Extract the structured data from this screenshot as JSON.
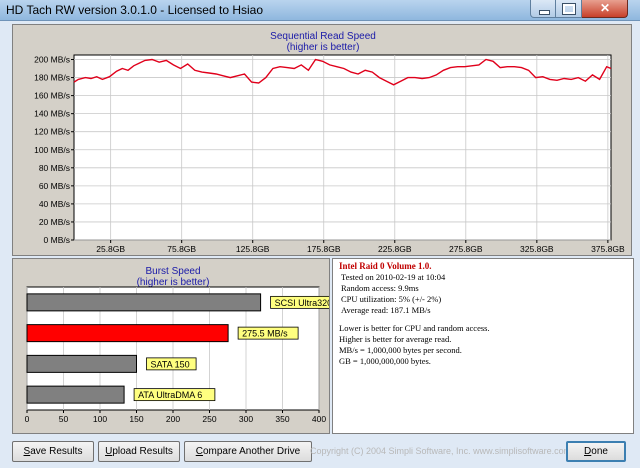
{
  "window": {
    "title": "HD Tach RW version 3.0.1.0 - Licensed to Hsiao"
  },
  "seq_chart": {
    "title_line1": "Sequential Read Speed",
    "title_line2": "(higher is better)"
  },
  "burst_chart": {
    "title_line1": "Burst Speed",
    "title_line2": "(higher is better)"
  },
  "info": {
    "heading": "Intel Raid 0 Volume 1.0.",
    "lines": [
      "Tested on 2010-02-19 at 10:04",
      "Random access: 9.9ms",
      "CPU utilization: 5% (+/- 2%)",
      "Average read: 187.1 MB/s"
    ],
    "notes": [
      "Lower is better for CPU and random access.",
      "Higher is better for average read.",
      "MB/s = 1,000,000 bytes per second.",
      "GB = 1,000,000,000 bytes."
    ]
  },
  "buttons": {
    "save_u": "S",
    "save_rest": "ave Results",
    "upload_u": "U",
    "upload_rest": "pload Results",
    "compare_u": "C",
    "compare_rest": "ompare Another Drive",
    "done_u": "D",
    "done_rest": "one"
  },
  "footer": {
    "copyright": "Copyright (C) 2004 Simpli Software, Inc. www.simplisoftware.com"
  },
  "colors": {
    "read_line": "#e0001b",
    "bar_gray": "#808080",
    "bar_red": "#ff0000",
    "label_bg": "#ffff80"
  },
  "chart_data": [
    {
      "type": "line",
      "title": "Sequential Read Speed",
      "subtitle": "(higher is better)",
      "x_tick_labels": [
        "25.8GB",
        "75.8GB",
        "125.8GB",
        "175.8GB",
        "225.8GB",
        "275.8GB",
        "325.8GB",
        "375.8GB"
      ],
      "x_ticks": [
        25.8,
        75.8,
        125.8,
        175.8,
        225.8,
        275.8,
        325.8,
        375.8
      ],
      "y_tick_labels": [
        "0 MB/s",
        "20 MB/s",
        "40 MB/s",
        "60 MB/s",
        "80 MB/s",
        "100 MB/s",
        "120 MB/s",
        "140 MB/s",
        "160 MB/s",
        "180 MB/s",
        "200 MB/s"
      ],
      "xlim": [
        0,
        378
      ],
      "ylim": [
        0,
        205
      ],
      "grid": true,
      "series": [
        {
          "x": [
            0,
            3,
            8,
            12,
            16,
            20,
            25,
            30,
            34,
            38,
            42,
            46,
            50,
            55,
            60,
            65,
            70,
            75,
            80,
            85,
            90,
            95,
            100,
            105,
            110,
            115,
            120,
            125,
            130,
            135,
            140,
            145,
            150,
            155,
            160,
            165,
            170,
            175,
            180,
            185,
            190,
            195,
            200,
            205,
            210,
            215,
            220,
            225,
            230,
            235,
            240,
            245,
            250,
            255,
            260,
            265,
            270,
            275,
            280,
            285,
            290,
            295,
            300,
            305,
            310,
            315,
            320,
            325,
            330,
            335,
            340,
            345,
            350,
            355,
            360,
            365,
            370,
            375,
            378
          ],
          "y": [
            175,
            178,
            180,
            179,
            181,
            178,
            181,
            187,
            190,
            188,
            193,
            196,
            199,
            200,
            197,
            199,
            194,
            190,
            195,
            188,
            186,
            185,
            184,
            182,
            180,
            182,
            184,
            175,
            174,
            180,
            190,
            192,
            191,
            190,
            194,
            188,
            200,
            198,
            194,
            192,
            190,
            186,
            184,
            188,
            186,
            180,
            176,
            172,
            176,
            180,
            180,
            179,
            180,
            183,
            188,
            191,
            192,
            192,
            193,
            194,
            200,
            198,
            191,
            192,
            192,
            191,
            188,
            180,
            181,
            178,
            177,
            179,
            178,
            180,
            176,
            183,
            178,
            192,
            190
          ]
        }
      ]
    },
    {
      "type": "bar",
      "title": "Burst Speed",
      "subtitle": "(higher is better)",
      "orientation": "horizontal",
      "categories": [
        "SCSI Ultra320",
        "275.5 MB/s",
        "SATA 150",
        "ATA UltraDMA 6"
      ],
      "values": [
        320,
        275.5,
        150,
        133
      ],
      "bar_colors": [
        "#808080",
        "#ff0000",
        "#808080",
        "#808080"
      ],
      "x_tick_labels": [
        "0",
        "50",
        "100",
        "150",
        "200",
        "250",
        "300",
        "350",
        "400"
      ],
      "xlim": [
        0,
        400
      ],
      "grid": true
    }
  ]
}
